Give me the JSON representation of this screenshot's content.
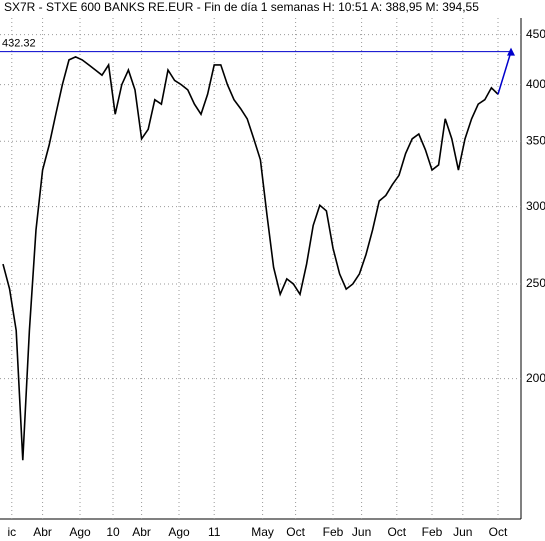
{
  "chart_data": {
    "type": "line",
    "title": "SX7R - STXE 600 BANKS RE.EUR - Fin de día 1 semanas H: 10:51 A: 388,95 M: 394,55",
    "x": [
      0,
      3,
      6,
      9,
      12,
      15,
      18,
      21,
      24,
      27,
      30,
      33,
      36,
      39,
      42,
      45,
      48,
      51,
      54,
      57,
      60,
      63,
      66,
      69,
      72,
      75,
      78,
      81,
      84,
      87,
      90,
      93,
      96,
      99,
      102,
      105,
      108,
      111,
      114,
      117,
      120,
      123,
      126,
      129,
      132,
      135,
      138,
      141,
      144,
      147,
      150,
      153,
      156,
      159,
      162,
      165,
      168,
      171,
      174,
      177,
      180,
      183,
      186,
      189,
      192,
      195,
      198,
      201,
      204,
      207,
      210,
      213,
      216,
      219,
      222,
      225
    ],
    "series": [
      {
        "color": "#000000",
        "values": [
          262,
          247,
          224,
          165,
          224,
          284,
          327,
          347,
          373,
          400,
          424,
          427,
          424,
          419,
          414,
          409,
          419,
          373,
          400,
          414,
          395,
          352,
          360,
          386,
          382,
          414,
          404,
          400,
          395,
          382,
          373,
          391,
          419,
          419,
          400,
          386,
          378,
          369,
          352,
          335,
          294,
          260,
          244,
          253,
          250,
          244,
          262,
          287,
          301,
          297,
          272,
          256,
          247,
          250,
          256,
          268,
          284,
          304,
          308,
          316,
          323,
          340,
          352,
          356,
          343,
          327,
          331,
          369,
          352,
          327,
          352,
          369,
          382,
          386,
          397,
          391
        ]
      }
    ],
    "reference_line": {
      "value": 432.32,
      "label": "432.32",
      "color": "#0000cc"
    },
    "xlim": [
      -1.36,
      235.45
    ],
    "xticks": [
      {
        "value": 4,
        "label": "ic"
      },
      {
        "value": 18,
        "label": "Abr"
      },
      {
        "value": 35,
        "label": "Ago"
      },
      {
        "value": 50,
        "label": "10"
      },
      {
        "value": 63,
        "label": "Abr"
      },
      {
        "value": 80,
        "label": "Ago"
      },
      {
        "value": 96,
        "label": "11"
      },
      {
        "value": 118,
        "label": "May"
      },
      {
        "value": 133,
        "label": "Oct"
      },
      {
        "value": 150,
        "label": "Feb"
      },
      {
        "value": 163,
        "label": "Jun"
      },
      {
        "value": 179,
        "label": "Oct"
      },
      {
        "value": 195,
        "label": "Feb"
      },
      {
        "value": 209,
        "label": "Jun"
      },
      {
        "value": 225,
        "label": "Oct"
      }
    ],
    "ylim": [
      145,
      468
    ],
    "yticks": [
      200,
      250,
      300,
      350,
      400,
      450
    ],
    "log_scale": true,
    "grid": true
  }
}
